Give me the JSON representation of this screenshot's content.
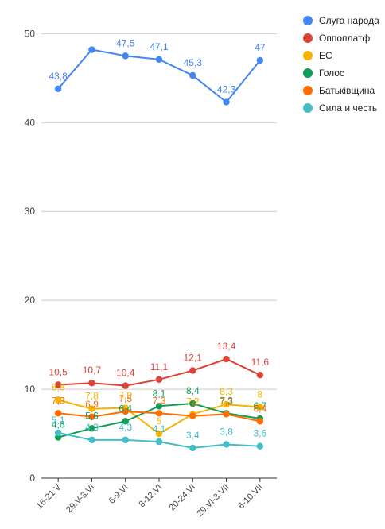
{
  "chart_data": {
    "type": "line",
    "categories": [
      "16-21.V",
      "29.V-3.VI",
      "6-9.VI",
      "8-12.VI",
      "20-24.VI",
      "29.VI-3.VII",
      "6-10.VII"
    ],
    "ylim": [
      0,
      52
    ],
    "yticks": [
      "0",
      "10",
      "20",
      "30",
      "40",
      "50"
    ],
    "grid": true,
    "legend_position": "right",
    "series": [
      {
        "name": "Слуга народа",
        "color": "#4285f4",
        "values": [
          43.8,
          48.2,
          47.5,
          47.1,
          45.3,
          42.3,
          47
        ],
        "labels": [
          "43,8",
          "",
          "47,5",
          "47,1",
          "45,3",
          "42,3",
          "47"
        ]
      },
      {
        "name": "Оппоплатф",
        "color": "#db4437",
        "values": [
          10.5,
          10.7,
          10.4,
          11.1,
          12.1,
          13.4,
          11.6
        ],
        "labels": [
          "10,5",
          "10,7",
          "10,4",
          "11,1",
          "12,1",
          "13,4",
          "11,6"
        ]
      },
      {
        "name": "ЕС",
        "color": "#f4b400",
        "values": [
          8.8,
          7.8,
          7.9,
          5,
          7.2,
          8.3,
          8
        ],
        "labels": [
          "8,8",
          "7,8",
          "7,9",
          "5",
          "7,2",
          "8,3",
          "8"
        ]
      },
      {
        "name": "Голос",
        "color": "#0f9d58",
        "values": [
          4.6,
          5.6,
          6.4,
          8.1,
          8.4,
          7.3,
          6.7
        ],
        "labels": [
          "4,6",
          "5,6",
          "6,4",
          "8,1",
          "8,4",
          "7,3",
          "6,7"
        ]
      },
      {
        "name": "Батьківщина",
        "color": "#ff6d01",
        "values": [
          7.3,
          6.9,
          7.5,
          7.3,
          7,
          7.2,
          6.4
        ],
        "labels": [
          "7,3",
          "6,9",
          "7,5",
          "7,3",
          "7",
          "7,2",
          "6,4"
        ]
      },
      {
        "name": "Сила и честь",
        "color": "#46bdc6",
        "values": [
          5.1,
          4.3,
          4.3,
          4.1,
          3.4,
          3.8,
          3.6
        ],
        "labels": [
          "5,1",
          "4,3",
          "4,3",
          "4,1",
          "3,4",
          "3,8",
          "3,6"
        ]
      }
    ]
  }
}
